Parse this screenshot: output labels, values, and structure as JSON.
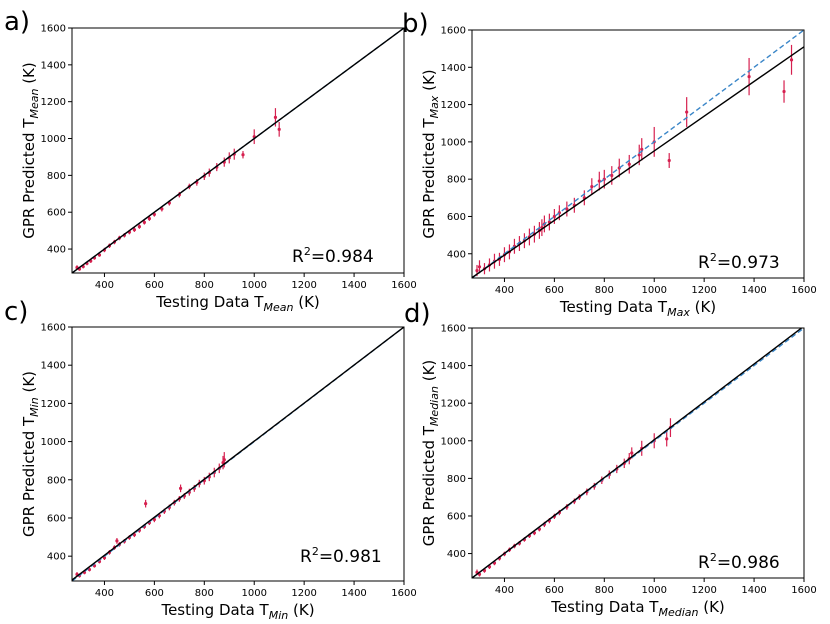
{
  "chart_data": [
    {
      "panel_label": "a)",
      "type": "scatter",
      "xlabel": "Testing Data T",
      "xlabel_sub": "Mean",
      "xlabel_unit": "(K)",
      "ylabel": "GPR Predicted T",
      "ylabel_sub": "Mean",
      "ylabel_unit": "(K)",
      "xlim": [
        270,
        1600
      ],
      "ylim": [
        270,
        1600
      ],
      "xticks": [
        400,
        600,
        800,
        1000,
        1200,
        1400,
        1600
      ],
      "yticks": [
        400,
        600,
        800,
        1000,
        1200,
        1400,
        1600
      ],
      "annotation": {
        "prefix": "R",
        "sup": "2",
        "suffix": "=0.984"
      },
      "fit_line": {
        "color": "#000000",
        "x": [
          270,
          1600
        ],
        "y": [
          270,
          1600
        ]
      },
      "ideal_line": {
        "color": "#3a86c8",
        "style": "dashed",
        "x": [
          270,
          1600
        ],
        "y": [
          270,
          1600
        ]
      },
      "series": [
        {
          "color": "#d6204f",
          "points": [
            [
              290,
              300,
              12
            ],
            [
              300,
              292,
              10
            ],
            [
              315,
              305,
              10
            ],
            [
              330,
              322,
              10
            ],
            [
              345,
              335,
              10
            ],
            [
              360,
              352,
              10
            ],
            [
              380,
              368,
              10
            ],
            [
              400,
              395,
              12
            ],
            [
              420,
              418,
              12
            ],
            [
              440,
              438,
              12
            ],
            [
              460,
              460,
              12
            ],
            [
              480,
              475,
              12
            ],
            [
              500,
              492,
              12
            ],
            [
              520,
              505,
              12
            ],
            [
              540,
              522,
              12
            ],
            [
              560,
              545,
              12
            ],
            [
              580,
              565,
              12
            ],
            [
              600,
              588,
              12
            ],
            [
              630,
              618,
              14
            ],
            [
              660,
              650,
              14
            ],
            [
              700,
              695,
              15
            ],
            [
              740,
              740,
              15
            ],
            [
              770,
              762,
              18
            ],
            [
              800,
              795,
              20
            ],
            [
              820,
              815,
              22
            ],
            [
              850,
              845,
              22
            ],
            [
              880,
              872,
              25
            ],
            [
              900,
              895,
              30
            ],
            [
              920,
              915,
              30
            ],
            [
              955,
              912,
              20
            ],
            [
              1000,
              1010,
              40
            ],
            [
              1085,
              1115,
              50
            ],
            [
              1100,
              1050,
              40
            ]
          ]
        }
      ]
    },
    {
      "panel_label": "b)",
      "type": "scatter",
      "xlabel": "Testing Data T",
      "xlabel_sub": "Max",
      "xlabel_unit": "(K)",
      "ylabel": "GPR Predicted T",
      "ylabel_sub": "Max",
      "ylabel_unit": "(K)",
      "xlim": [
        270,
        1600
      ],
      "ylim": [
        270,
        1600
      ],
      "xticks": [
        400,
        600,
        800,
        1000,
        1200,
        1400,
        1600
      ],
      "yticks": [
        400,
        600,
        800,
        1000,
        1200,
        1400,
        1600
      ],
      "annotation": {
        "prefix": "R",
        "sup": "2",
        "suffix": "=0.973"
      },
      "fit_line": {
        "color": "#000000",
        "x": [
          270,
          1600
        ],
        "y": [
          272,
          1510
        ]
      },
      "ideal_line": {
        "color": "#3a86c8",
        "style": "dashed",
        "x": [
          270,
          1600
        ],
        "y": [
          270,
          1600
        ]
      },
      "series": [
        {
          "color": "#d6204f",
          "points": [
            [
              290,
              310,
              30
            ],
            [
              300,
              330,
              35
            ],
            [
              320,
              320,
              30
            ],
            [
              340,
              340,
              35
            ],
            [
              360,
              360,
              40
            ],
            [
              380,
              370,
              35
            ],
            [
              400,
              395,
              40
            ],
            [
              420,
              410,
              40
            ],
            [
              440,
              440,
              40
            ],
            [
              460,
              455,
              40
            ],
            [
              480,
              470,
              40
            ],
            [
              500,
              490,
              45
            ],
            [
              520,
              505,
              45
            ],
            [
              540,
              525,
              45
            ],
            [
              550,
              540,
              45
            ],
            [
              560,
              560,
              45
            ],
            [
              580,
              570,
              45
            ],
            [
              600,
              600,
              40
            ],
            [
              620,
              620,
              40
            ],
            [
              650,
              640,
              40
            ],
            [
              680,
              660,
              40
            ],
            [
              720,
              700,
              40
            ],
            [
              750,
              760,
              45
            ],
            [
              780,
              790,
              50
            ],
            [
              800,
              800,
              50
            ],
            [
              830,
              820,
              50
            ],
            [
              860,
              860,
              50
            ],
            [
              900,
              880,
              50
            ],
            [
              940,
              930,
              55
            ],
            [
              950,
              960,
              60
            ],
            [
              1000,
              1000,
              80
            ],
            [
              1060,
              900,
              40
            ],
            [
              1130,
              1160,
              80
            ],
            [
              1380,
              1350,
              100
            ],
            [
              1520,
              1270,
              60
            ],
            [
              1550,
              1440,
              80
            ]
          ]
        }
      ]
    },
    {
      "panel_label": "c)",
      "type": "scatter",
      "xlabel": "Testing Data T",
      "xlabel_sub": "Min",
      "xlabel_unit": "(K)",
      "ylabel": "GPR Predicted T",
      "ylabel_sub": "Min",
      "ylabel_unit": "(K)",
      "xlim": [
        270,
        1600
      ],
      "ylim": [
        270,
        1600
      ],
      "xticks": [
        400,
        600,
        800,
        1000,
        1200,
        1400,
        1600
      ],
      "yticks": [
        400,
        600,
        800,
        1000,
        1200,
        1400,
        1600
      ],
      "annotation": {
        "prefix": "R",
        "sup": "2",
        "suffix": "=0.981"
      },
      "fit_line": {
        "color": "#000000",
        "x": [
          270,
          1600
        ],
        "y": [
          275,
          1600
        ]
      },
      "ideal_line": {
        "color": "#3a86c8",
        "style": "dashed",
        "x": [
          270,
          1600
        ],
        "y": [
          270,
          1600
        ]
      },
      "series": [
        {
          "color": "#d6204f",
          "points": [
            [
              290,
              305,
              12
            ],
            [
              300,
              298,
              10
            ],
            [
              320,
              315,
              10
            ],
            [
              340,
              330,
              10
            ],
            [
              360,
              350,
              10
            ],
            [
              380,
              372,
              10
            ],
            [
              400,
              392,
              12
            ],
            [
              420,
              420,
              12
            ],
            [
              440,
              445,
              12
            ],
            [
              450,
              480,
              15
            ],
            [
              460,
              462,
              12
            ],
            [
              480,
              478,
              12
            ],
            [
              500,
              498,
              12
            ],
            [
              520,
              512,
              12
            ],
            [
              540,
              535,
              12
            ],
            [
              560,
              555,
              12
            ],
            [
              565,
              675,
              20
            ],
            [
              580,
              575,
              12
            ],
            [
              600,
              592,
              14
            ],
            [
              620,
              612,
              14
            ],
            [
              640,
              635,
              14
            ],
            [
              660,
              655,
              15
            ],
            [
              680,
              680,
              15
            ],
            [
              700,
              700,
              15
            ],
            [
              705,
              755,
              20
            ],
            [
              720,
              715,
              15
            ],
            [
              740,
              735,
              18
            ],
            [
              760,
              755,
              18
            ],
            [
              780,
              780,
              20
            ],
            [
              800,
              795,
              20
            ],
            [
              820,
              815,
              22
            ],
            [
              840,
              838,
              25
            ],
            [
              860,
              860,
              25
            ],
            [
              875,
              890,
              35
            ],
            [
              880,
              905,
              40
            ]
          ]
        }
      ]
    },
    {
      "panel_label": "d)",
      "type": "scatter",
      "xlabel": "Testing Data T",
      "xlabel_sub": "Median",
      "xlabel_unit": "(K)",
      "ylabel": "GPR Predicted T",
      "ylabel_sub": "Median",
      "ylabel_unit": "(K)",
      "xlim": [
        270,
        1600
      ],
      "ylim": [
        270,
        1600
      ],
      "xticks": [
        400,
        600,
        800,
        1000,
        1200,
        1400,
        1600
      ],
      "yticks": [
        400,
        600,
        800,
        1000,
        1200,
        1400,
        1600
      ],
      "annotation": {
        "prefix": "R",
        "sup": "2",
        "suffix": "=0.986"
      },
      "fit_line": {
        "color": "#000000",
        "x": [
          270,
          1600
        ],
        "y": [
          270,
          1610
        ]
      },
      "ideal_line": {
        "color": "#3a86c8",
        "style": "dashed",
        "x": [
          270,
          1600
        ],
        "y": [
          270,
          1600
        ]
      },
      "series": [
        {
          "color": "#d6204f",
          "points": [
            [
              290,
              300,
              15
            ],
            [
              300,
              290,
              12
            ],
            [
              320,
              310,
              12
            ],
            [
              340,
              330,
              12
            ],
            [
              360,
              350,
              12
            ],
            [
              380,
              375,
              12
            ],
            [
              400,
              398,
              12
            ],
            [
              420,
              420,
              12
            ],
            [
              440,
              440,
              12
            ],
            [
              460,
              455,
              12
            ],
            [
              480,
              475,
              12
            ],
            [
              500,
              495,
              12
            ],
            [
              520,
              510,
              12
            ],
            [
              540,
              530,
              12
            ],
            [
              560,
              555,
              14
            ],
            [
              580,
              575,
              14
            ],
            [
              600,
              598,
              14
            ],
            [
              620,
              618,
              14
            ],
            [
              650,
              648,
              15
            ],
            [
              680,
              678,
              15
            ],
            [
              700,
              700,
              15
            ],
            [
              730,
              728,
              18
            ],
            [
              760,
              758,
              18
            ],
            [
              790,
              790,
              20
            ],
            [
              820,
              820,
              22
            ],
            [
              850,
              850,
              22
            ],
            [
              880,
              880,
              25
            ],
            [
              900,
              905,
              30
            ],
            [
              910,
              935,
              30
            ],
            [
              950,
              960,
              40
            ],
            [
              1000,
              1000,
              40
            ],
            [
              1050,
              1010,
              40
            ],
            [
              1065,
              1070,
              50
            ]
          ]
        }
      ]
    }
  ]
}
